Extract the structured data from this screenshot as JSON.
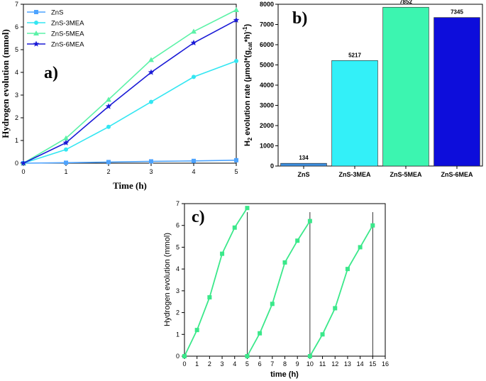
{
  "chart_data": [
    {
      "id": "a",
      "type": "line",
      "panel_label": "a)",
      "xlabel": "Time (h)",
      "ylabel": "Hydrogen evolution (mmol)",
      "xlim": [
        0,
        5
      ],
      "ylim": [
        0,
        7
      ],
      "xticks": [
        "0",
        "1",
        "2",
        "3",
        "4",
        "5"
      ],
      "yticks": [
        "0",
        "1",
        "2",
        "3",
        "4",
        "5",
        "6",
        "7"
      ],
      "x": [
        0,
        1,
        2,
        3,
        4,
        5
      ],
      "legend_position": "top-left",
      "series": [
        {
          "name": "ZnS",
          "color": "#4da3ff",
          "marker": "square",
          "values": [
            0,
            0.02,
            0.05,
            0.08,
            0.1,
            0.13
          ]
        },
        {
          "name": "ZnS-3MEA",
          "color": "#33e6f2",
          "marker": "circle",
          "values": [
            0,
            0.6,
            1.6,
            2.7,
            3.8,
            4.5
          ]
        },
        {
          "name": "ZnS-5MEA",
          "color": "#5cf2a8",
          "marker": "triangle",
          "values": [
            0,
            1.1,
            2.8,
            4.55,
            5.8,
            6.75
          ]
        },
        {
          "name": "ZnS-6MEA",
          "color": "#1a1ad6",
          "marker": "star",
          "values": [
            0,
            0.9,
            2.5,
            4.0,
            5.3,
            6.3
          ]
        }
      ]
    },
    {
      "id": "b",
      "type": "bar",
      "panel_label": "b)",
      "ylabel_parts": [
        "H",
        "2",
        " evolution rate (",
        "μ",
        "mol*(g",
        "cat",
        "*h)",
        "-1",
        ")"
      ],
      "ylim": [
        0,
        8000
      ],
      "yticks": [
        "0",
        "1000",
        "2000",
        "3000",
        "4000",
        "5000",
        "6000",
        "7000",
        "8000"
      ],
      "categories": [
        "ZnS",
        "ZnS-3MEA",
        "ZnS-5MEA",
        "ZnS-6MEA"
      ],
      "values": [
        134,
        5217,
        7852,
        7345
      ],
      "value_labels": [
        "134",
        "5217",
        "7852",
        "7345"
      ],
      "colors": [
        "#3d8fe0",
        "#33f0f8",
        "#3cf5b0",
        "#0d0ddb"
      ]
    },
    {
      "id": "c",
      "type": "line",
      "panel_label": "c)",
      "xlabel": "time (h)",
      "ylabel": "Hydrogen evolution (mmol)",
      "xlim": [
        0,
        16
      ],
      "ylim": [
        0,
        7
      ],
      "xticks": [
        "0",
        "1",
        "2",
        "3",
        "4",
        "5",
        "6",
        "7",
        "8",
        "9",
        "10",
        "11",
        "12",
        "13",
        "14",
        "15",
        "16"
      ],
      "yticks": [
        "0",
        "1",
        "2",
        "3",
        "4",
        "5",
        "6",
        "7"
      ],
      "series_color": "#3ae88a",
      "cycles": [
        {
          "x": [
            0,
            1,
            2,
            3,
            4,
            5
          ],
          "values": [
            0,
            1.2,
            2.7,
            4.7,
            5.9,
            6.8
          ]
        },
        {
          "x": [
            5,
            6,
            7,
            8,
            9,
            10
          ],
          "values": [
            0,
            1.05,
            2.4,
            4.3,
            5.3,
            6.2
          ]
        },
        {
          "x": [
            10,
            11,
            12,
            13,
            14,
            15
          ],
          "values": [
            0,
            1.0,
            2.2,
            4.0,
            5.0,
            6.0
          ]
        }
      ],
      "cycle_dividers_x": [
        5,
        10,
        15
      ]
    }
  ]
}
